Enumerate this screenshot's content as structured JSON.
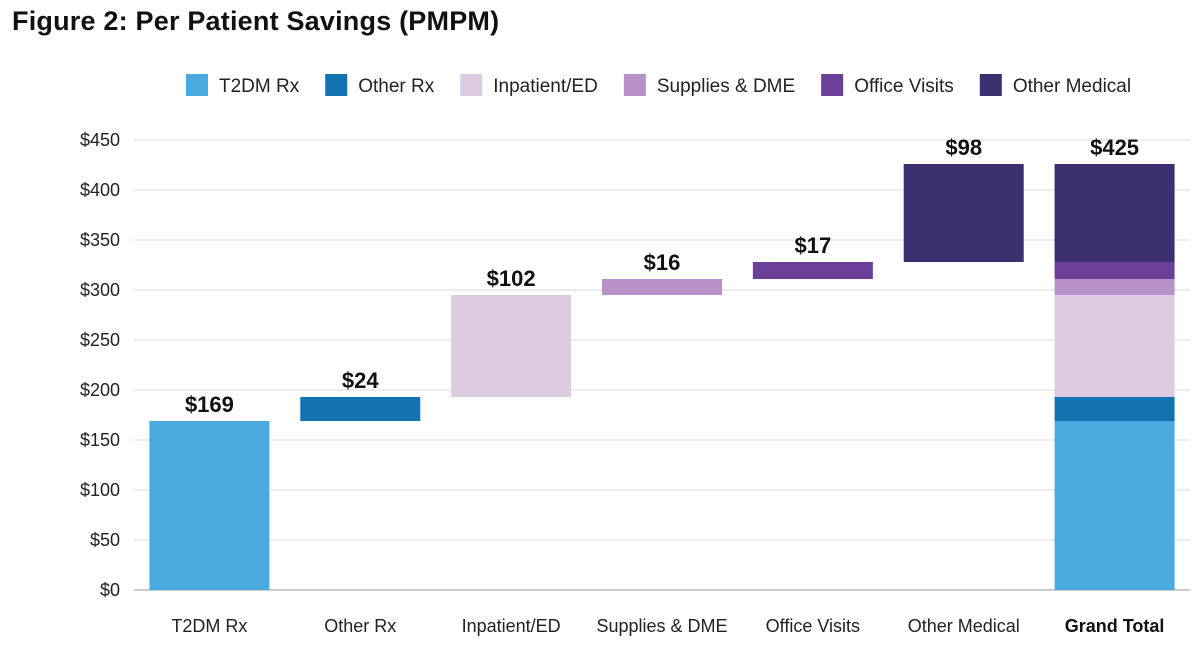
{
  "title": "Figure 2: Per Patient Savings (PMPM)",
  "chart_data": {
    "type": "bar",
    "subtype": "waterfall",
    "title": "Figure 2: Per Patient Savings (PMPM)",
    "xlabel": "",
    "ylabel": "",
    "ylim": [
      0,
      450
    ],
    "y_ticks": [
      0,
      50,
      100,
      150,
      200,
      250,
      300,
      350,
      400,
      450
    ],
    "y_tick_labels": [
      "$0",
      "$50",
      "$100",
      "$150",
      "$200",
      "$250",
      "$300",
      "$350",
      "$400",
      "$450"
    ],
    "grid": true,
    "legend_position": "top",
    "categories": [
      "T2DM Rx",
      "Other Rx",
      "Inpatient/ED",
      "Supplies & DME",
      "Office Visits",
      "Other Medical",
      "Grand Total"
    ],
    "series": [
      {
        "name": "T2DM Rx",
        "values": [
          169,
          null,
          null,
          null,
          null,
          null,
          169
        ],
        "color": "#4aaadf"
      },
      {
        "name": "Other Rx",
        "values": [
          null,
          24,
          null,
          null,
          null,
          null,
          24
        ],
        "color": "#1372b0"
      },
      {
        "name": "Inpatient/ED",
        "values": [
          null,
          null,
          102,
          null,
          null,
          null,
          102
        ],
        "color": "#dccbe2"
      },
      {
        "name": "Supplies & DME",
        "values": [
          null,
          null,
          null,
          16,
          null,
          null,
          16
        ],
        "color": "#b891c8"
      },
      {
        "name": "Office Visits",
        "values": [
          null,
          null,
          null,
          null,
          17,
          null,
          17
        ],
        "color": "#6c3f99"
      },
      {
        "name": "Other Medical",
        "values": [
          null,
          null,
          null,
          null,
          null,
          98,
          98
        ],
        "color": "#3d3071"
      }
    ],
    "data_labels": [
      "$169",
      "$24",
      "$102",
      "$16",
      "$17",
      "$98",
      "$425"
    ],
    "total": 425
  }
}
